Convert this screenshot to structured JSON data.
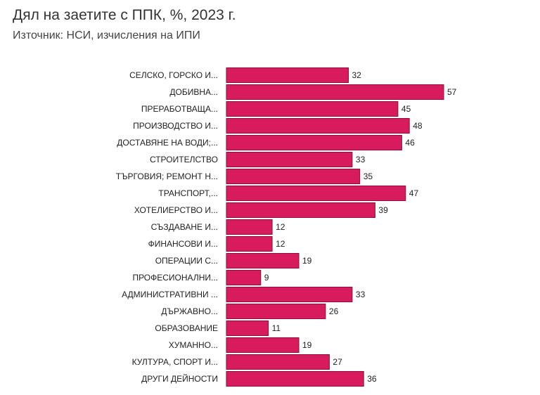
{
  "title": "Дял на заетите с ППК, %, 2023 г.",
  "subtitle": "Източник: НСИ, изчисления на ИПИ",
  "colors": {
    "bar": "#d81b5c",
    "bar_border": "#8a0f3a"
  },
  "chart_data": {
    "type": "bar",
    "orientation": "horizontal",
    "categories": [
      "СЕЛСКО, ГОРСКО И...",
      "ДОБИВНА...",
      "ПРЕРАБОТВАЩА...",
      "ПРОИЗВОДСТВО И...",
      "ДОСТАВЯНЕ НА ВОДИ;...",
      "СТРОИТЕЛСТВО",
      "ТЪРГОВИЯ; РЕМОНТ Н...",
      "ТРАНСПОРТ,...",
      "ХОТЕЛИЕРСТВО И...",
      "СЪЗДАВАНЕ И...",
      "ФИНАНСОВИ И...",
      "ОПЕРАЦИИ С...",
      "ПРОФЕСИОНАЛНИ...",
      "АДМИНИСТРАТИВНИ ...",
      "ДЪРЖАВНО...",
      "ОБРАЗОВАНИЕ",
      "ХУМАННО...",
      "КУЛТУРА, СПОРТ И...",
      "ДРУГИ ДЕЙНОСТИ"
    ],
    "values": [
      32,
      57,
      45,
      48,
      46,
      33,
      35,
      47,
      39,
      12,
      12,
      19,
      9,
      33,
      26,
      11,
      19,
      27,
      36
    ],
    "data_labels": [
      "32",
      "57",
      "45",
      "48",
      "46",
      "33",
      "35",
      "47",
      "39",
      "12",
      "12",
      "19",
      "9",
      "33",
      "26",
      "11",
      "19",
      "27",
      "36"
    ],
    "xlim": [
      0,
      57
    ],
    "grid": false,
    "legend": "none"
  }
}
